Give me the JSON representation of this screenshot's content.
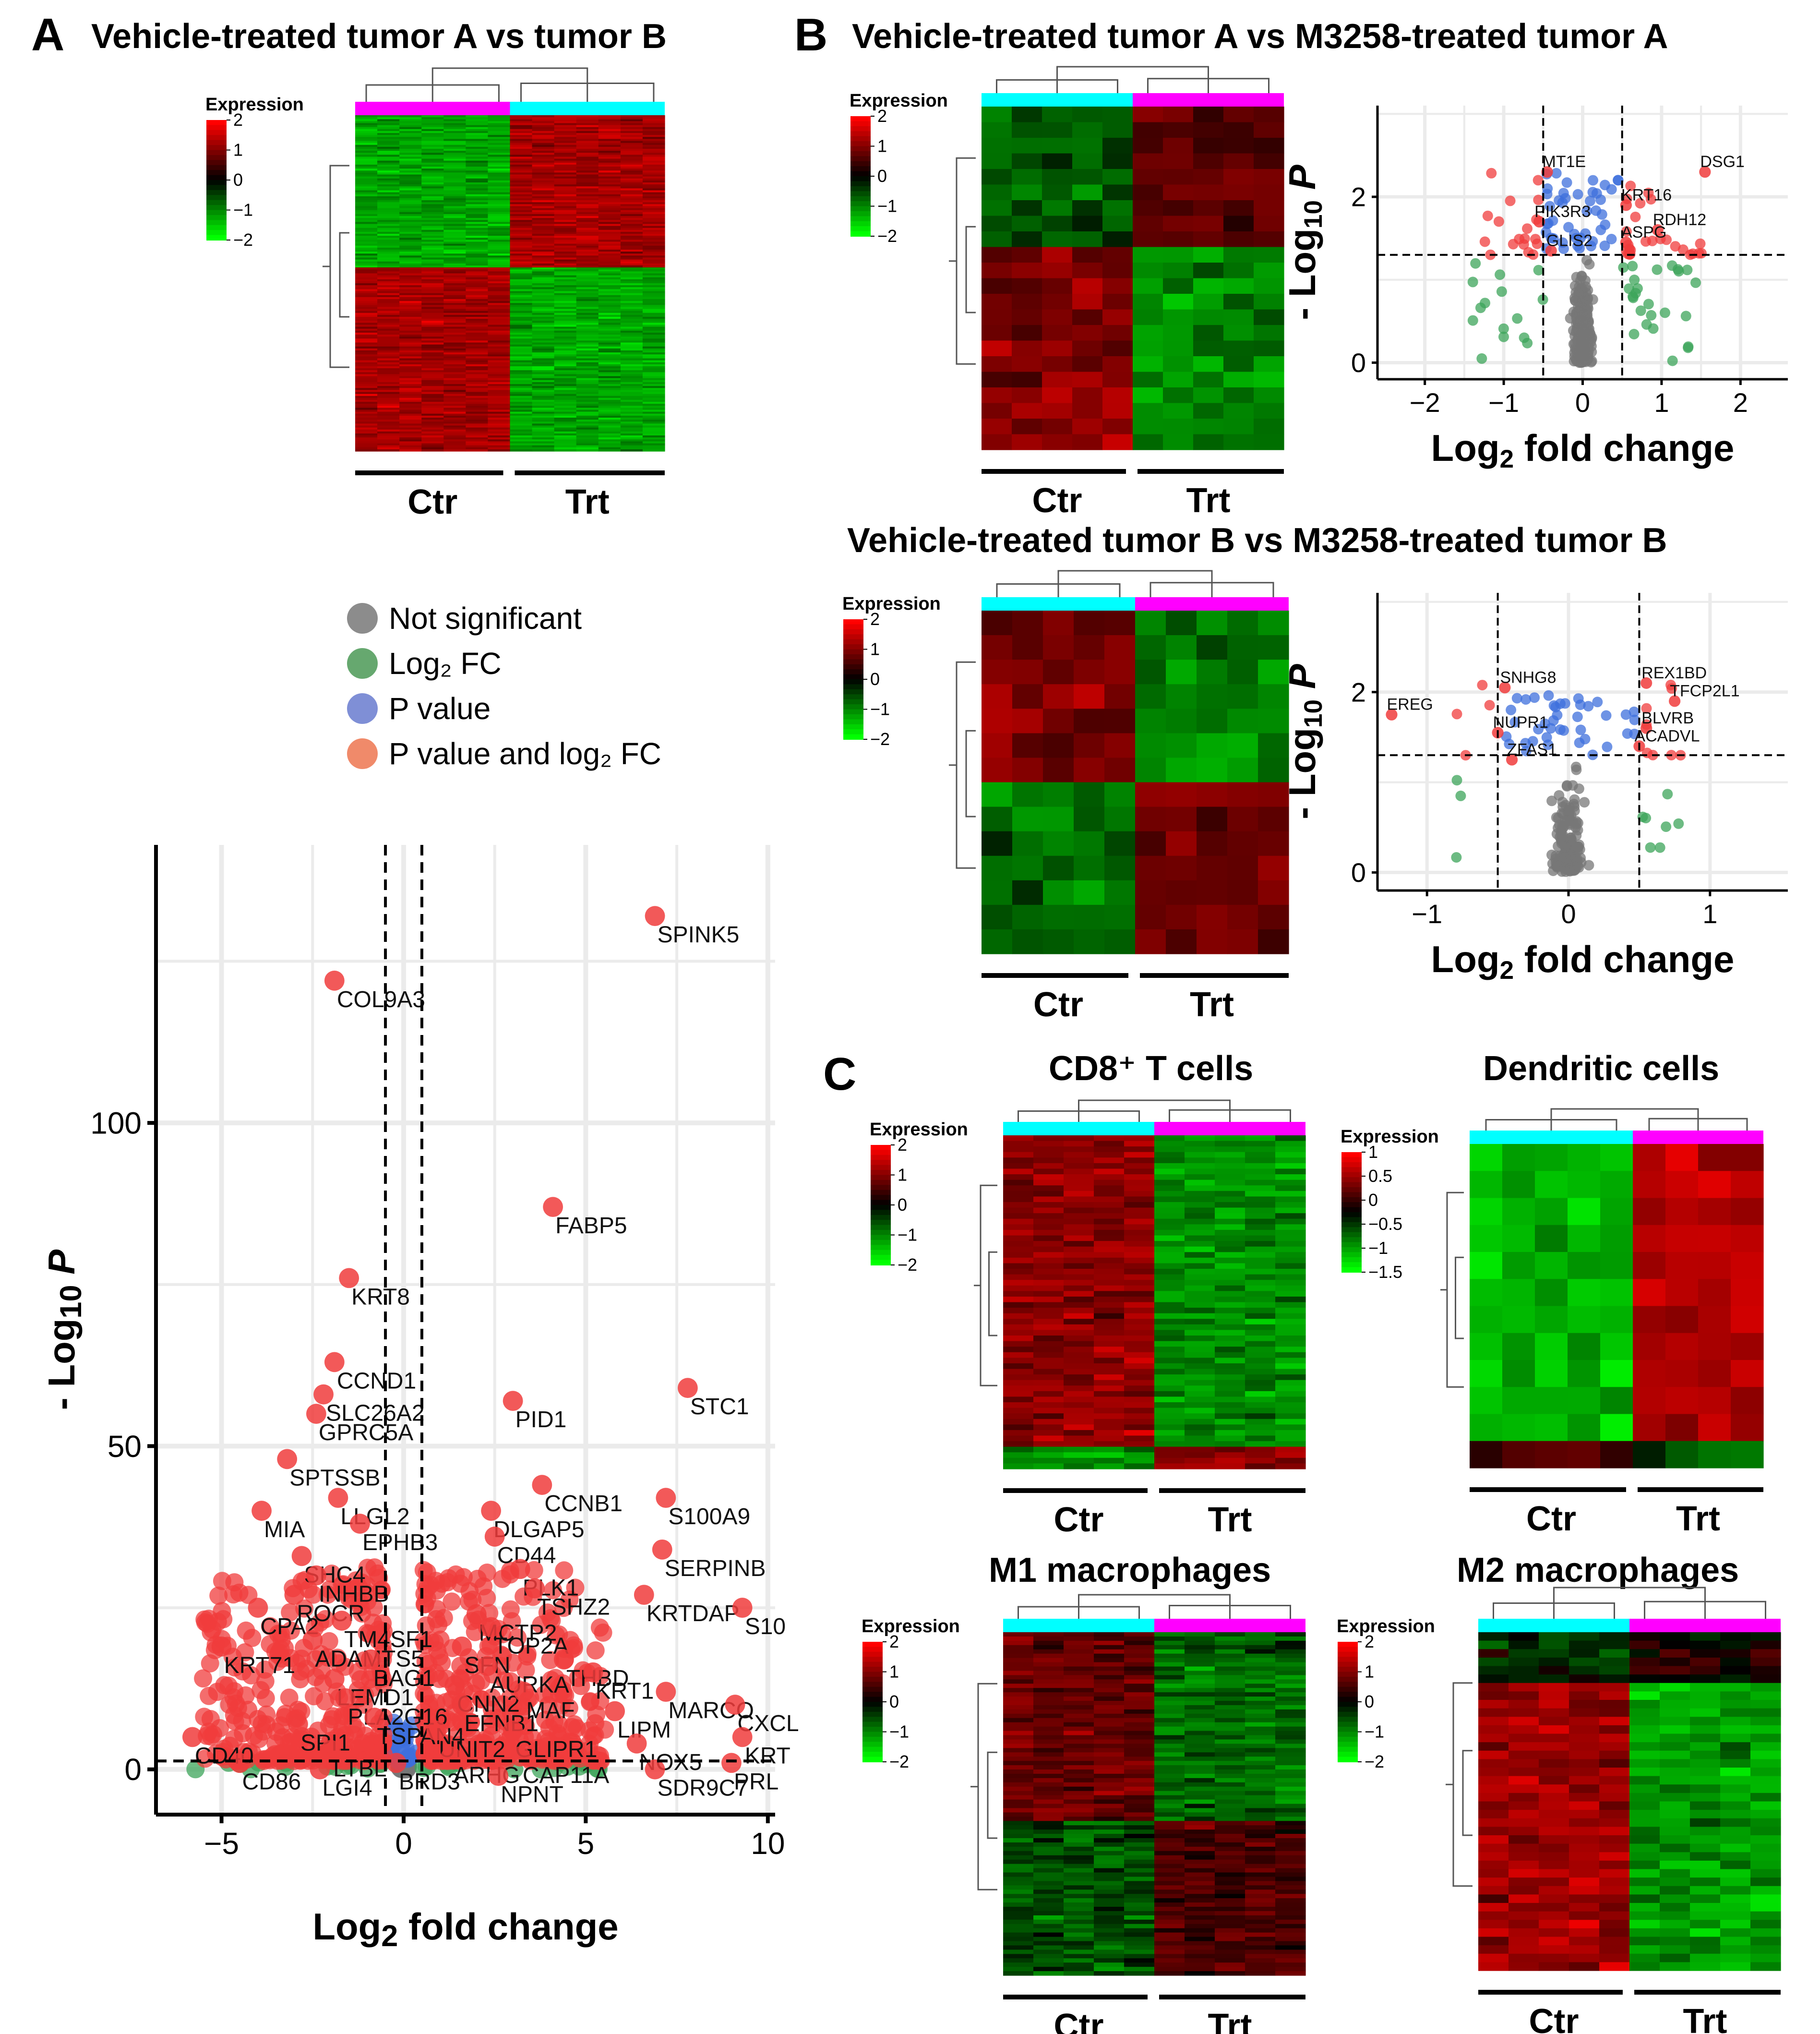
{
  "panels": {
    "A": {
      "letter": "A",
      "title": "Vehicle-treated tumor A vs tumor B"
    },
    "B": {
      "letter": "B",
      "title": "Vehicle-treated tumor A vs M3258-treated tumor A",
      "title2": "Vehicle-treated tumor B vs M3258-treated tumor B"
    },
    "C": {
      "letter": "C",
      "subtitles": [
        "CD8⁺ T cells",
        "Dendritic cells",
        "M1 macrophages",
        "M2 macrophages"
      ]
    }
  },
  "groups": {
    "ctr": "Ctr",
    "trt": "Trt"
  },
  "heatmap_legend": {
    "title": "Expression",
    "ticks_standard": [
      "2",
      "1",
      "0",
      "−1",
      "−2"
    ],
    "ticks_dc": [
      "1",
      "0.5",
      "0",
      "−0.5",
      "−1",
      "−1.5"
    ]
  },
  "key": {
    "items": [
      {
        "label": "Not significant",
        "color": "#8c8c8c"
      },
      {
        "label": "Log₂ FC",
        "color": "#66a86f"
      },
      {
        "label": "P value",
        "color": "#7f8fd6"
      },
      {
        "label": "P value and log₂ FC",
        "color": "#f08a6a"
      }
    ]
  },
  "colors": {
    "magenta": "#ff00ff",
    "cyan": "#00ffff",
    "red": "#ff0000",
    "green": "#00ff00",
    "black": "#000000",
    "grid": "#ebebeb"
  },
  "chart_data": [
    {
      "type": "scatter",
      "id": "volcano-A",
      "xlabel": "Log2 fold change",
      "ylabel": "- Log10 P",
      "xlim": [
        -6.8,
        10.2
      ],
      "ylim": [
        -7,
        143
      ],
      "xticks": [
        -5,
        0,
        5,
        10
      ],
      "yticks": [
        0,
        50,
        100
      ],
      "vlines": [
        -0.5,
        0.5
      ],
      "hline": 1.3,
      "labeled_points": [
        {
          "gene": "SPINK5",
          "x": 6.9,
          "y": 132
        },
        {
          "gene": "COL9A3",
          "x": -1.9,
          "y": 122
        },
        {
          "gene": "FABP5",
          "x": 4.1,
          "y": 87
        },
        {
          "gene": "KRT8",
          "x": -1.5,
          "y": 76
        },
        {
          "gene": "CCND1",
          "x": -1.9,
          "y": 63
        },
        {
          "gene": "STC1",
          "x": 7.8,
          "y": 59
        },
        {
          "gene": "PID1",
          "x": 3.0,
          "y": 57
        },
        {
          "gene": "SLC26A2",
          "x": -2.2,
          "y": 58
        },
        {
          "gene": "GPRC5A",
          "x": -2.4,
          "y": 55
        },
        {
          "gene": "SPTSSB",
          "x": -3.2,
          "y": 48
        },
        {
          "gene": "CCNB1",
          "x": 3.8,
          "y": 44
        },
        {
          "gene": "S100A9",
          "x": 7.2,
          "y": 42
        },
        {
          "gene": "MIA",
          "x": -3.9,
          "y": 40
        },
        {
          "gene": "LLGL2",
          "x": -1.8,
          "y": 42
        },
        {
          "gene": "DLGAP5",
          "x": 2.4,
          "y": 40
        },
        {
          "gene": "EPHB3",
          "x": -1.2,
          "y": 38
        },
        {
          "gene": "SHC4",
          "x": -2.8,
          "y": 33
        },
        {
          "gene": "CD44",
          "x": 2.5,
          "y": 36
        },
        {
          "gene": "SERPINB",
          "x": 7.1,
          "y": 34
        },
        {
          "gene": "INHBB",
          "x": -2.4,
          "y": 30
        },
        {
          "gene": "PLK1",
          "x": 3.2,
          "y": 31
        },
        {
          "gene": "ROCR",
          "x": -3.0,
          "y": 27
        },
        {
          "gene": "TSHZ2",
          "x": 3.6,
          "y": 28
        },
        {
          "gene": "KRTDAP",
          "x": 6.6,
          "y": 27
        },
        {
          "gene": "CPA2",
          "x": -4.0,
          "y": 25
        },
        {
          "gene": "TM4SF1",
          "x": -1.7,
          "y": 23
        },
        {
          "gene": "MCTP2",
          "x": 2.0,
          "y": 24
        },
        {
          "gene": "S10",
          "x": 9.3,
          "y": 25
        },
        {
          "gene": "ADAMTS5",
          "x": -2.5,
          "y": 20
        },
        {
          "gene": "TOP2A",
          "x": 2.4,
          "y": 22
        },
        {
          "gene": "KRT71",
          "x": -5.0,
          "y": 19
        },
        {
          "gene": "BAG1",
          "x": -0.9,
          "y": 17
        },
        {
          "gene": "SFN",
          "x": 1.6,
          "y": 19
        },
        {
          "gene": "THBD",
          "x": 4.4,
          "y": 17
        },
        {
          "gene": "AURKA",
          "x": 2.3,
          "y": 16
        },
        {
          "gene": "KRT1",
          "x": 5.2,
          "y": 15
        },
        {
          "gene": "LEMD1",
          "x": -1.9,
          "y": 14
        },
        {
          "gene": "CNN2",
          "x": 1.4,
          "y": 13
        },
        {
          "gene": "MAF",
          "x": 3.3,
          "y": 12
        },
        {
          "gene": "MARCO",
          "x": 7.2,
          "y": 12
        },
        {
          "gene": "PLA2G16",
          "x": -1.6,
          "y": 11
        },
        {
          "gene": "EFNB1",
          "x": 1.6,
          "y": 10
        },
        {
          "gene": "TSPAN4",
          "x": -0.8,
          "y": 8
        },
        {
          "gene": "LIPM",
          "x": 5.8,
          "y": 9
        },
        {
          "gene": "CXCL",
          "x": 9.1,
          "y": 10
        },
        {
          "gene": "SPI1",
          "x": -2.9,
          "y": 7
        },
        {
          "gene": "UNIT2",
          "x": 0.9,
          "y": 6
        },
        {
          "gene": "GLIPR1",
          "x": 3.0,
          "y": 6
        },
        {
          "gene": "KRT",
          "x": 9.3,
          "y": 5
        },
        {
          "gene": "CD40",
          "x": -5.8,
          "y": 5
        },
        {
          "gene": "LTBL",
          "x": -2.0,
          "y": 3
        },
        {
          "gene": "NOX5",
          "x": 6.4,
          "y": 4
        },
        {
          "gene": "ARHG",
          "x": 1.3,
          "y": 2
        },
        {
          "gene": "CAP11A",
          "x": 3.2,
          "y": 2
        },
        {
          "gene": "PRL",
          "x": 9.0,
          "y": 1
        },
        {
          "gene": "CD86",
          "x": -4.5,
          "y": 1
        },
        {
          "gene": "LGI4",
          "x": -2.3,
          "y": 0
        },
        {
          "gene": "BRD3",
          "x": -0.2,
          "y": 1
        },
        {
          "gene": "NPNT",
          "x": 2.6,
          "y": -1
        },
        {
          "gene": "SDR9C7",
          "x": 6.9,
          "y": 0
        }
      ]
    },
    {
      "type": "scatter",
      "id": "volcano-B1",
      "xlabel": "Log2 fold change",
      "ylabel": "- Log10 P",
      "xlim": [
        -2.6,
        2.6
      ],
      "ylim": [
        -0.2,
        3.1
      ],
      "xticks": [
        -2,
        -1,
        0,
        1,
        2
      ],
      "yticks": [
        0,
        2
      ],
      "vlines": [
        -0.5,
        0.5
      ],
      "hline": 1.3,
      "labeled_points": [
        {
          "gene": "DSG1",
          "x": 1.55,
          "y": 2.3
        },
        {
          "gene": "MT1E",
          "x": -0.45,
          "y": 2.3
        },
        {
          "gene": "KRT16",
          "x": 0.55,
          "y": 1.9
        },
        {
          "gene": "PIK3R3",
          "x": -0.55,
          "y": 1.7
        },
        {
          "gene": "RDH12",
          "x": 0.95,
          "y": 1.6
        },
        {
          "gene": "ASPG",
          "x": 0.55,
          "y": 1.45
        },
        {
          "gene": "GLIS2",
          "x": -0.4,
          "y": 1.35
        }
      ]
    },
    {
      "type": "scatter",
      "id": "volcano-B2",
      "xlabel": "Log2 fold change",
      "ylabel": "- Log10 P",
      "xlim": [
        -1.35,
        1.55
      ],
      "ylim": [
        -0.2,
        3.1
      ],
      "xticks": [
        -1,
        0,
        1
      ],
      "yticks": [
        0,
        2
      ],
      "vlines": [
        -0.5,
        0.5
      ],
      "hline": 1.3,
      "labeled_points": [
        {
          "gene": "SNHG8",
          "x": -0.45,
          "y": 2.05
        },
        {
          "gene": "REX1BD",
          "x": 0.55,
          "y": 2.1
        },
        {
          "gene": "TFCP2L1",
          "x": 0.75,
          "y": 1.9
        },
        {
          "gene": "EREG",
          "x": -1.25,
          "y": 1.75
        },
        {
          "gene": "NUPR1",
          "x": -0.5,
          "y": 1.55
        },
        {
          "gene": "BLVRB",
          "x": 0.55,
          "y": 1.6
        },
        {
          "gene": "ACADVL",
          "x": 0.5,
          "y": 1.4
        },
        {
          "gene": "ZFAS1",
          "x": -0.4,
          "y": 1.25
        }
      ]
    }
  ]
}
